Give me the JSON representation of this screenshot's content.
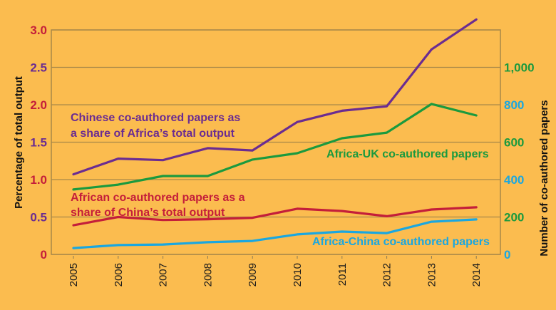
{
  "chart_data": {
    "type": "line",
    "categories": [
      "2005",
      "2006",
      "2007",
      "2008",
      "2009",
      "2010",
      "2011",
      "2012",
      "2013",
      "2014"
    ],
    "ylabel_left": "Percentage of total output",
    "ylabel_right": "Number of co-authored papers",
    "ylim_left": [
      0,
      3.0
    ],
    "ylim_right": [
      0,
      1200
    ],
    "left_ticks": [
      {
        "label": "0",
        "value": 0,
        "color": "#c41e3a"
      },
      {
        "label": "0.5",
        "value": 0.5,
        "color": "#6b2c91"
      },
      {
        "label": "1.0",
        "value": 1.0,
        "color": "#c41e3a"
      },
      {
        "label": "1.5",
        "value": 1.5,
        "color": "#6b2c91"
      },
      {
        "label": "2.0",
        "value": 2.0,
        "color": "#c41e3a"
      },
      {
        "label": "2.5",
        "value": 2.5,
        "color": "#6b2c91"
      },
      {
        "label": "3.0",
        "value": 3.0,
        "color": "#c41e3a"
      }
    ],
    "right_ticks": [
      {
        "label": "0",
        "value": 0,
        "color": "#1aa7e0"
      },
      {
        "label": "200",
        "value": 200,
        "color": "#1b9a3e"
      },
      {
        "label": "400",
        "value": 400,
        "color": "#1aa7e0"
      },
      {
        "label": "600",
        "value": 600,
        "color": "#1b9a3e"
      },
      {
        "label": "800",
        "value": 800,
        "color": "#1aa7e0"
      },
      {
        "label": "1,000",
        "value": 1000,
        "color": "#1b9a3e"
      }
    ],
    "grid": true,
    "series": [
      {
        "name": "Chinese co-authored papers as a share of Africa’s total output",
        "axis": "left",
        "color": "#6b2c91",
        "values": [
          1.07,
          1.28,
          1.26,
          1.42,
          1.39,
          1.77,
          1.92,
          1.98,
          2.74,
          3.14
        ]
      },
      {
        "name": "African co-authored papers as a share of China’s total output",
        "axis": "left",
        "color": "#c41e3a",
        "values": [
          0.39,
          0.5,
          0.46,
          0.47,
          0.49,
          0.61,
          0.58,
          0.51,
          0.6,
          0.63
        ]
      },
      {
        "name": "Africa-UK co-authored papers",
        "axis": "right",
        "color": "#1b9a3e",
        "values": [
          347,
          373,
          419,
          419,
          507,
          541,
          621,
          651,
          804,
          743
        ]
      },
      {
        "name": "Africa-China co-authored papers",
        "axis": "right",
        "color": "#1aa7e0",
        "values": [
          34,
          50,
          53,
          65,
          72,
          107,
          122,
          114,
          175,
          187
        ]
      }
    ],
    "annotations": [
      {
        "lines": [
          "Chinese co-authored papers as",
          "a share of Africa’s total output"
        ],
        "color": "#6b2c91"
      },
      {
        "lines": [
          "Africa-UK co-authored papers"
        ],
        "color": "#1b9a3e"
      },
      {
        "lines": [
          "African co-authored papers as a",
          "share of China’s total output"
        ],
        "color": "#c41e3a"
      },
      {
        "lines": [
          "Africa-China co-authored papers"
        ],
        "color": "#1aa7e0"
      }
    ]
  }
}
